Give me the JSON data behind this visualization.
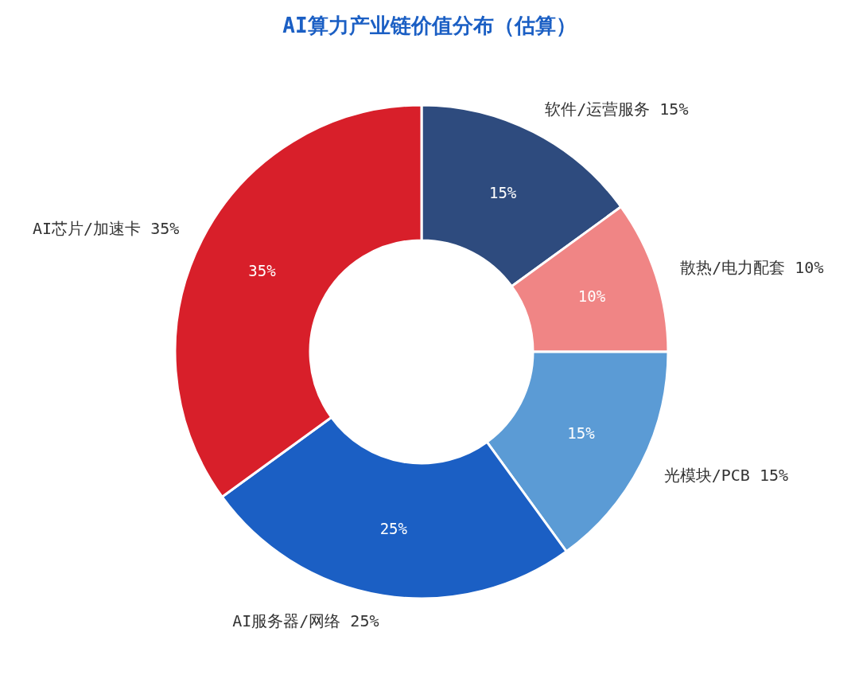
{
  "chart_data": {
    "type": "donut",
    "title": "AI算力产业链价值分布（估算）",
    "categories": [
      "软件/运营服务 15%",
      "散热/电力配套 10%",
      "光模块/PCB 15%",
      "AI服务器/网络 25%",
      "AI芯片/加速卡 35%"
    ],
    "values": [
      15,
      10,
      15,
      25,
      35
    ],
    "value_labels": [
      "15%",
      "10%",
      "15%",
      "25%",
      "35%"
    ],
    "colors": [
      "#2e4b7e",
      "#f08585",
      "#5b9bd5",
      "#1b5fc4",
      "#d81f2a"
    ]
  }
}
